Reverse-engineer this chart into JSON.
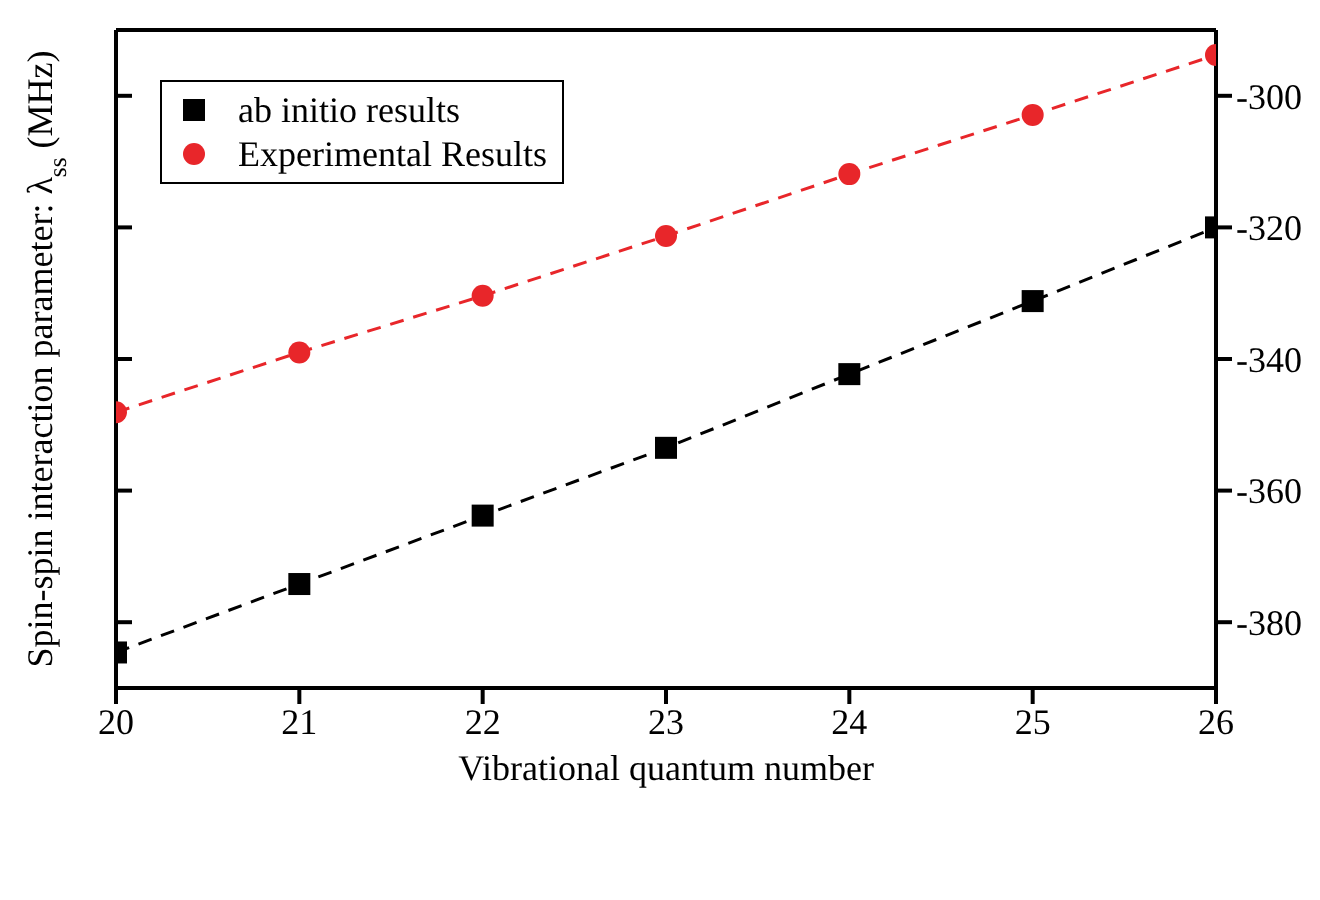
{
  "chart_data": {
    "type": "line",
    "xlabel": "Vibrational quantum number",
    "ylabel": "Spin-spin interaction parameter: λ$_{ss}$ (MHz)",
    "x": [
      20,
      21,
      22,
      23,
      24,
      25,
      26
    ],
    "series": [
      {
        "name": "ab initio results",
        "color": "#000000",
        "marker": "square",
        "values": [
          -384.6,
          -374.2,
          -363.8,
          -353.5,
          -342.3,
          -331.2,
          -320
        ]
      },
      {
        "name": "Experimental Results",
        "color": "#e8262a",
        "marker": "circle",
        "values": [
          -348.1,
          -339,
          -330.4,
          -321.3,
          -311.9,
          -302.9,
          -293.8
        ]
      }
    ],
    "xlim": [
      20,
      26
    ],
    "xticks": [
      20,
      21,
      22,
      23,
      24,
      25,
      26
    ],
    "ylim": [
      -390,
      -290
    ],
    "yticks": [
      -380,
      -360,
      -340,
      -320,
      -300
    ],
    "legend": "top left",
    "line_style": "dashed"
  }
}
